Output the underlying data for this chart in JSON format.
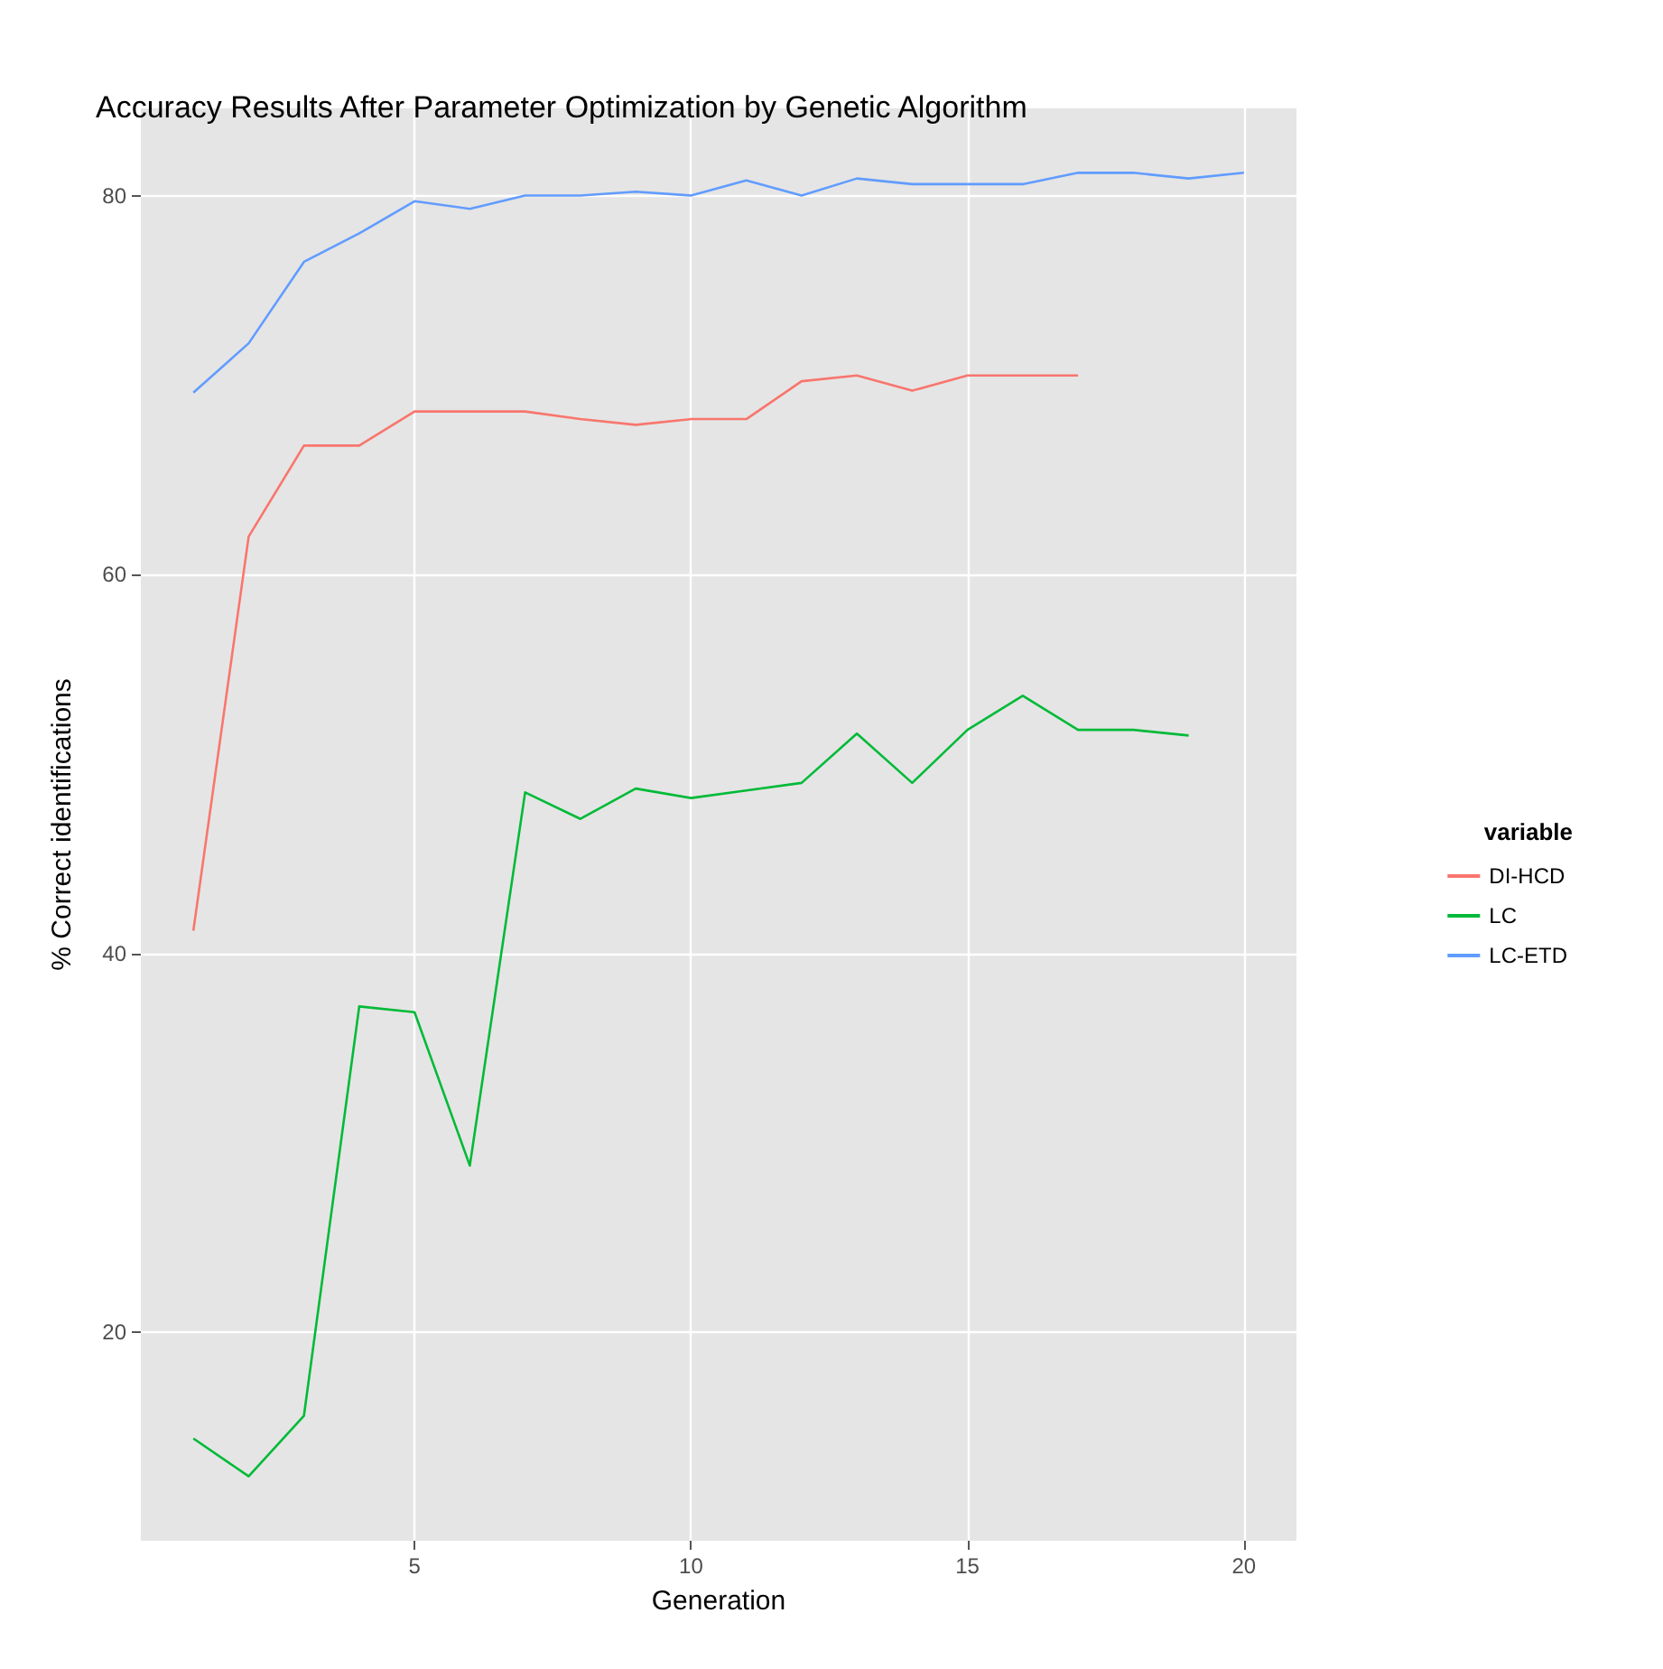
{
  "chart_data": {
    "type": "line",
    "title": "Accuracy Results After Parameter Optimization by Genetic Algorithm",
    "xlabel": "Generation",
    "ylabel": "% Correct identifications",
    "legend_title": "variable",
    "x": [
      1,
      2,
      3,
      4,
      5,
      6,
      7,
      8,
      9,
      10,
      11,
      12,
      13,
      14,
      15,
      16,
      17,
      18,
      19,
      20
    ],
    "series": [
      {
        "name": "DI-HCD",
        "color": "#f8766d",
        "values": [
          41.2,
          62,
          66.8,
          66.8,
          68.6,
          68.6,
          68.6,
          68.2,
          67.9,
          68.2,
          68.2,
          70.2,
          70.5,
          69.7,
          70.5,
          70.5,
          70.5,
          null,
          null,
          null
        ]
      },
      {
        "name": "LC",
        "color": "#00ba38",
        "values": [
          14.4,
          12.4,
          15.6,
          37.2,
          36.9,
          28.8,
          48.5,
          47.1,
          48.7,
          48.2,
          48.6,
          49,
          51.6,
          49,
          51.8,
          53.6,
          51.8,
          51.8,
          51.5,
          null
        ]
      },
      {
        "name": "LC-ETD",
        "color": "#619cff",
        "values": [
          69.6,
          72.2,
          76.5,
          78,
          79.7,
          79.3,
          80,
          80,
          80.2,
          80,
          80.8,
          80,
          80.9,
          80.6,
          80.6,
          80.6,
          81.2,
          81.2,
          80.9,
          81.2
        ]
      }
    ],
    "xlim": [
      0.05,
      20.95
    ],
    "ylim": [
      9,
      84.6
    ],
    "xticks": [
      5,
      10,
      15,
      20
    ],
    "yticks": [
      20,
      40,
      60,
      80
    ],
    "grid": true,
    "legend": "right",
    "marker": "none",
    "line_style": "solid"
  }
}
